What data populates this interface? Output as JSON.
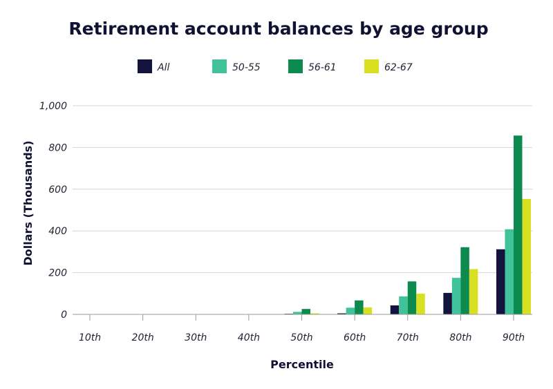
{
  "chart_data": {
    "type": "bar",
    "title": "Retirement account balances by age group",
    "xlabel": "Percentile",
    "ylabel": "Dollars (Thousands)",
    "ylim": [
      0,
      1000
    ],
    "yticks": [
      "0",
      "200",
      "400",
      "600",
      "800",
      "1,000"
    ],
    "categories": [
      "10th",
      "20th",
      "30th",
      "40th",
      "50th",
      "60th",
      "70th",
      "80th",
      "90th"
    ],
    "grid": true,
    "legend_position": "top",
    "series": [
      {
        "name": "All",
        "color": "#13133e",
        "values": [
          0,
          0,
          0,
          0,
          3,
          5,
          43,
          103,
          312
        ]
      },
      {
        "name": "50-55",
        "color": "#40c29a",
        "values": [
          0,
          0,
          0,
          0,
          12,
          32,
          86,
          175,
          408
        ]
      },
      {
        "name": "56-61",
        "color": "#0d8a4d",
        "values": [
          0,
          0,
          0,
          0,
          26,
          67,
          158,
          322,
          857
        ]
      },
      {
        "name": "62-67",
        "color": "#d8e021",
        "values": [
          0,
          0,
          0,
          0,
          5,
          33,
          99,
          217,
          553
        ]
      }
    ]
  }
}
